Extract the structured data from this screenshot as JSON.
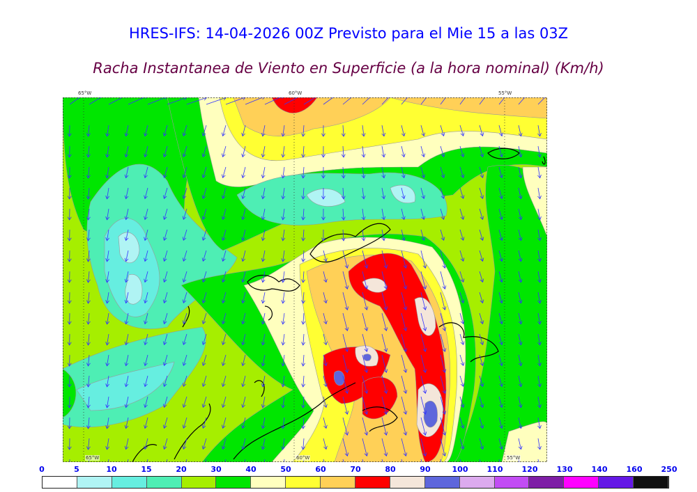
{
  "header": {
    "title": "HRES-IFS: 14-04-2026 00Z Previsto para el Mie 15 a las 03Z",
    "subtitle": "Racha Instantanea de Viento en Superficie (a la hora nominal) (Km/h)"
  },
  "map": {
    "lon_labels": [
      "65°W",
      "60°W",
      "55°W"
    ],
    "field": "wind gust (km/h)",
    "arrow_color": "#3333ff",
    "coastline_color": "#000000"
  },
  "colorbar": {
    "ticks": [
      "0",
      "5",
      "10",
      "15",
      "20",
      "30",
      "40",
      "50",
      "60",
      "70",
      "80",
      "90",
      "100",
      "110",
      "120",
      "130",
      "140",
      "160",
      "250"
    ],
    "colors": [
      "#ffffff",
      "#b0f4f4",
      "#66eee0",
      "#4eeeb4",
      "#a6ee00",
      "#00e600",
      "#ffffbe",
      "#ffff33",
      "#ffd057",
      "#ff0000",
      "#f4e6da",
      "#5e66dc",
      "#dcaaee",
      "#c24cf4",
      "#7e1ea6",
      "#ff00ff",
      "#6418e6",
      "#101010"
    ]
  }
}
